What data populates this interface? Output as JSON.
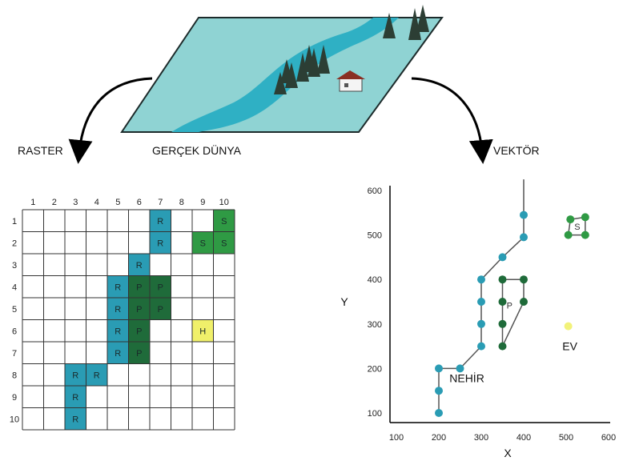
{
  "labels": {
    "raster": "RASTER",
    "real_world": "GERÇEK DÜNYA",
    "vector": "VEKTÖR"
  },
  "colors": {
    "river": "#3fb5c6",
    "land": "#8fd3d3",
    "raster_river": "#2a9cb4",
    "raster_park": "#1f6b3a",
    "raster_forest": "#2f9a44",
    "raster_house": "#f0f06a",
    "vector_park": "#1f6b3a",
    "vector_forest": "#2f9a44",
    "vector_house": "#f2f27a"
  },
  "raster": {
    "col_labels": [
      "1",
      "2",
      "3",
      "4",
      "5",
      "6",
      "7",
      "8",
      "9",
      "10"
    ],
    "row_labels": [
      "1",
      "2",
      "3",
      "4",
      "5",
      "6",
      "7",
      "8",
      "9",
      "10"
    ],
    "cells": [
      {
        "row": 1,
        "col": 7,
        "code": "R",
        "class": "river"
      },
      {
        "row": 1,
        "col": 10,
        "code": "S",
        "class": "forest"
      },
      {
        "row": 2,
        "col": 7,
        "code": "R",
        "class": "river"
      },
      {
        "row": 2,
        "col": 9,
        "code": "S",
        "class": "forest"
      },
      {
        "row": 2,
        "col": 10,
        "code": "S",
        "class": "forest"
      },
      {
        "row": 3,
        "col": 6,
        "code": "R",
        "class": "river"
      },
      {
        "row": 4,
        "col": 5,
        "code": "R",
        "class": "river"
      },
      {
        "row": 4,
        "col": 6,
        "code": "P",
        "class": "park"
      },
      {
        "row": 4,
        "col": 7,
        "code": "P",
        "class": "park"
      },
      {
        "row": 5,
        "col": 5,
        "code": "R",
        "class": "river"
      },
      {
        "row": 5,
        "col": 6,
        "code": "P",
        "class": "park"
      },
      {
        "row": 5,
        "col": 7,
        "code": "P",
        "class": "park"
      },
      {
        "row": 6,
        "col": 5,
        "code": "R",
        "class": "river"
      },
      {
        "row": 6,
        "col": 6,
        "code": "P",
        "class": "park"
      },
      {
        "row": 6,
        "col": 9,
        "code": "H",
        "class": "house"
      },
      {
        "row": 7,
        "col": 5,
        "code": "R",
        "class": "river"
      },
      {
        "row": 7,
        "col": 6,
        "code": "P",
        "class": "park"
      },
      {
        "row": 8,
        "col": 3,
        "code": "R",
        "class": "river"
      },
      {
        "row": 8,
        "col": 4,
        "code": "R",
        "class": "river"
      },
      {
        "row": 9,
        "col": 3,
        "code": "R",
        "class": "river"
      },
      {
        "row": 10,
        "col": 3,
        "code": "R",
        "class": "river"
      }
    ]
  },
  "chart_data": {
    "type": "scatter",
    "xlabel": "X",
    "ylabel": "Y",
    "xlim": [
      100,
      600
    ],
    "ylim": [
      100,
      600
    ],
    "x_ticks": [
      "100",
      "200",
      "300",
      "400",
      "500",
      "600"
    ],
    "y_ticks": [
      "100",
      "200",
      "300",
      "400",
      "500",
      "600"
    ],
    "series": [
      {
        "name": "NEHİR",
        "kind": "polyline",
        "points": [
          [
            200,
            100
          ],
          [
            200,
            150
          ],
          [
            200,
            200
          ],
          [
            250,
            200
          ],
          [
            300,
            250
          ],
          [
            300,
            300
          ],
          [
            300,
            350
          ],
          [
            300,
            400
          ],
          [
            350,
            450
          ],
          [
            400,
            495
          ],
          [
            400,
            545
          ]
        ],
        "extends_to": [
          400,
          625
        ]
      },
      {
        "name": "P",
        "kind": "polygon",
        "points": [
          [
            350,
            250
          ],
          [
            350,
            300
          ],
          [
            350,
            350
          ],
          [
            350,
            400
          ],
          [
            400,
            400
          ],
          [
            400,
            350
          ]
        ]
      },
      {
        "name": "S",
        "kind": "polygon",
        "points": [
          [
            505,
            500
          ],
          [
            545,
            500
          ],
          [
            545,
            540
          ],
          [
            510,
            535
          ]
        ]
      },
      {
        "name": "EV",
        "kind": "point",
        "points": [
          [
            505,
            295
          ]
        ]
      }
    ]
  }
}
